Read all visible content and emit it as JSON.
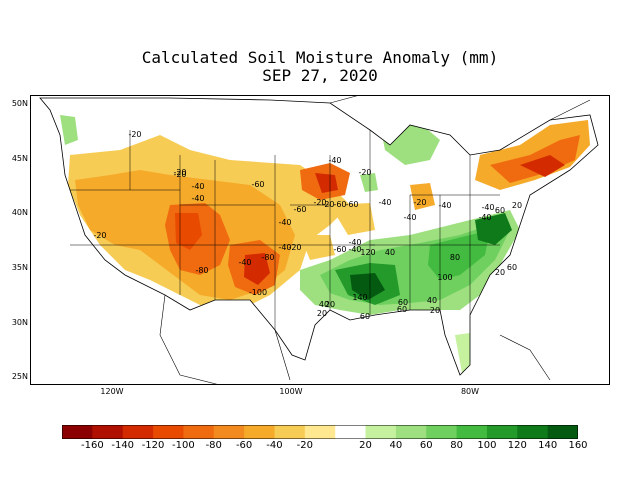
{
  "title": {
    "line1": "Calculated Soil Moisture Anomaly (mm)",
    "line2": "SEP 27, 2020"
  },
  "map": {
    "lat_ticks": [
      "50N",
      "45N",
      "40N",
      "35N",
      "30N",
      "25N"
    ],
    "lon_ticks": [
      "120W",
      "100W",
      "80W"
    ],
    "contour_labels": [
      "-20",
      "-20",
      "-40",
      "-40",
      "-60",
      "-60",
      "-60",
      "-60",
      "-20",
      "-20",
      "-40",
      "-20",
      "-40",
      "-40",
      "-80",
      "-80",
      "-100",
      "-40",
      "-20",
      "-40",
      "-40",
      "-60",
      "-40",
      "-20",
      "-20",
      "-40",
      "20",
      "120",
      "40",
      "80",
      "100",
      "40",
      "60",
      "140",
      "40",
      "20",
      "60",
      "60",
      "20",
      "60",
      "20",
      "-40",
      "60",
      "20",
      "-20",
      "-40",
      "-40"
    ]
  },
  "colorbar": {
    "labels": [
      "-160",
      "-140",
      "-120",
      "-100",
      "-80",
      "-60",
      "-40",
      "-20",
      "20",
      "40",
      "60",
      "80",
      "100",
      "120",
      "140",
      "160"
    ],
    "colors": [
      "#8b0000",
      "#b01000",
      "#d42a00",
      "#e84a00",
      "#f06a10",
      "#f38a20",
      "#f5aa2a",
      "#f7cc55",
      "#ffe890",
      "#ffffff",
      "#c6f2a0",
      "#9ee080",
      "#6fd060",
      "#42bb40",
      "#239a2a",
      "#0f7a1a",
      "#045a10"
    ]
  }
}
